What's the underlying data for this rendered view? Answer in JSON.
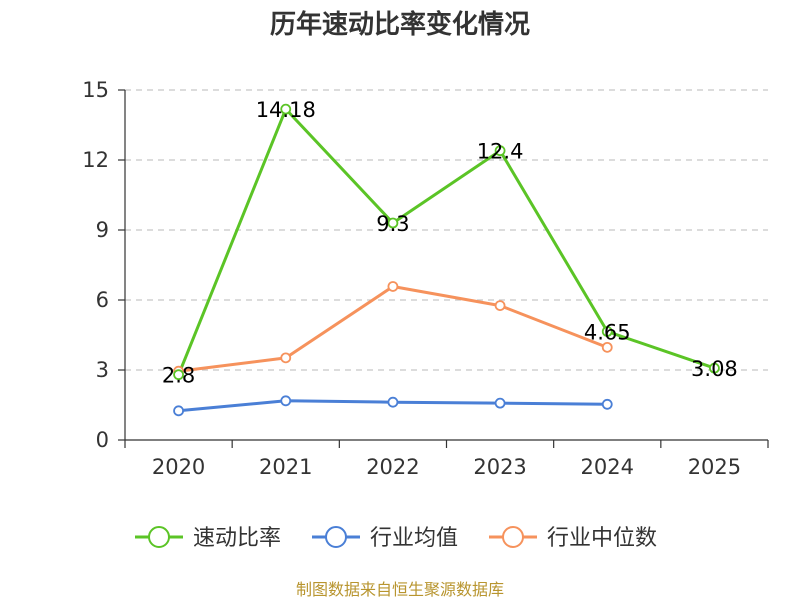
{
  "chart_data": {
    "type": "line",
    "title": "历年速动比率变化情况",
    "categories": [
      "2020",
      "2021",
      "2022",
      "2023",
      "2024",
      "2025"
    ],
    "y_ticks": [
      "0",
      "3",
      "6",
      "9",
      "12",
      "15"
    ],
    "ylim": [
      0,
      15
    ],
    "grid": true,
    "legend_position": "bottom",
    "series": [
      {
        "name": "速动比率",
        "color": "#5bc426",
        "values": [
          2.8,
          14.18,
          9.3,
          12.4,
          4.65,
          3.08
        ],
        "labels": [
          "2.8",
          "14.18",
          "9.3",
          "12.4",
          "4.65",
          "3.08"
        ]
      },
      {
        "name": "行业均值",
        "color": "#4a7fd6",
        "values": [
          1.25,
          1.68,
          1.62,
          1.58,
          1.53,
          null
        ]
      },
      {
        "name": "行业中位数",
        "color": "#f6925c",
        "values": [
          2.95,
          3.52,
          6.58,
          5.76,
          3.97,
          null
        ]
      }
    ],
    "source": "制图数据来自恒生聚源数据库"
  }
}
